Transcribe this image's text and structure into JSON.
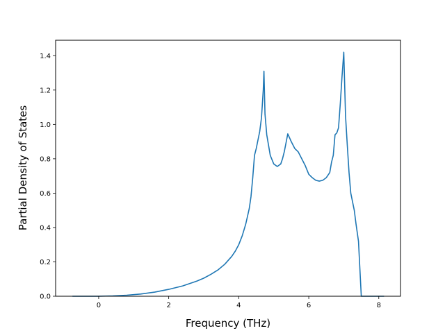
{
  "chart_data": {
    "type": "line",
    "xlabel": "Frequency (THz)",
    "ylabel": "Partial Density of States",
    "xlim": [
      -1.23,
      8.62
    ],
    "ylim": [
      0.0,
      1.49
    ],
    "xticks": [
      0,
      2,
      4,
      6,
      8
    ],
    "xtick_labels": [
      "0",
      "2",
      "4",
      "6",
      "8"
    ],
    "yticks": [
      0.0,
      0.2,
      0.4,
      0.6,
      0.8,
      1.0,
      1.2,
      1.4
    ],
    "ytick_labels": [
      "0.0",
      "0.2",
      "0.4",
      "0.6",
      "0.8",
      "1.0",
      "1.2",
      "1.4"
    ],
    "grid": false,
    "line_color": "#1f77b4",
    "series": [
      {
        "x": [
          -0.75,
          -0.4,
          0.0,
          0.4,
          0.8,
          1.2,
          1.6,
          2.0,
          2.4,
          2.8,
          3.0,
          3.2,
          3.4,
          3.6,
          3.8,
          3.9,
          4.0,
          4.1,
          4.2,
          4.3,
          4.35,
          4.4,
          4.45,
          4.5,
          4.6,
          4.65,
          4.7,
          4.72,
          4.75,
          4.8,
          4.85,
          4.9,
          5.0,
          5.1,
          5.2,
          5.25,
          5.3,
          5.4,
          5.5,
          5.6,
          5.7,
          5.8,
          5.9,
          6.0,
          6.1,
          6.2,
          6.3,
          6.4,
          6.5,
          6.6,
          6.65,
          6.7,
          6.75,
          6.8,
          6.85,
          6.9,
          6.95,
          7.0,
          7.05,
          7.1,
          7.15,
          7.2,
          7.3,
          7.35,
          7.42,
          7.5,
          8.0,
          8.15
        ],
        "y": [
          0.0,
          0.0,
          0.0,
          0.002,
          0.006,
          0.013,
          0.024,
          0.04,
          0.06,
          0.088,
          0.105,
          0.127,
          0.152,
          0.186,
          0.232,
          0.262,
          0.3,
          0.352,
          0.42,
          0.51,
          0.58,
          0.69,
          0.82,
          0.86,
          0.96,
          1.04,
          1.2,
          1.31,
          1.06,
          0.94,
          0.88,
          0.82,
          0.77,
          0.755,
          0.77,
          0.8,
          0.84,
          0.945,
          0.9,
          0.86,
          0.84,
          0.8,
          0.76,
          0.71,
          0.69,
          0.675,
          0.67,
          0.675,
          0.69,
          0.72,
          0.78,
          0.82,
          0.94,
          0.95,
          0.98,
          1.12,
          1.28,
          1.42,
          1.05,
          0.88,
          0.72,
          0.6,
          0.5,
          0.42,
          0.32,
          0.0,
          0.0,
          0.0
        ]
      }
    ]
  }
}
